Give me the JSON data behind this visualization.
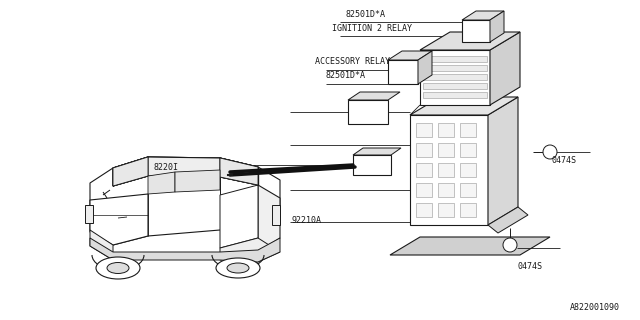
{
  "bg_color": "#ffffff",
  "line_color": "#1a1a1a",
  "gray_color": "#aaaaaa",
  "light_gray": "#cccccc",
  "labels": {
    "82501D_A_top": "82501D*A",
    "ignition": "IGNITION 2 RELAY",
    "accessory": "ACCESSORY RELAY",
    "82501D_A_bot": "82501D*A",
    "8220I": "8220I",
    "92210A": "92210A",
    "0474S_right": "0474S",
    "0474S_bot": "0474S",
    "bottom_ref": "A822001090"
  },
  "font_size": 6.0,
  "ref_font_size": 6.0,
  "car_scale": 1.0,
  "fuse_scale": 1.0
}
